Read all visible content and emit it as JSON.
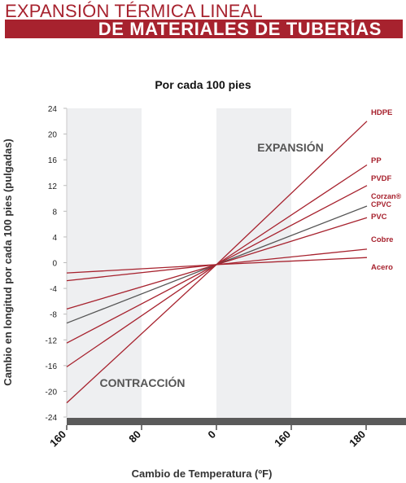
{
  "header": {
    "title_line1": "EXPANSIÓN TÉRMICA LINEAL",
    "title_line2": "DE MATERIALES DE TUBERÍAS",
    "brand_color": "#a7222e"
  },
  "chart_data": {
    "type": "line",
    "title": "Por cada 100 pies",
    "xlabel": "Cambio de Temperatura (ºF)",
    "ylabel": "Cambio en longitud por cada 100 pies (pulgadas)",
    "x_tick_labels": [
      "160",
      "80",
      "0",
      "160",
      "180"
    ],
    "x": [
      -160,
      0,
      180
    ],
    "ylim": [
      -24,
      24
    ],
    "y_ticks": [
      24,
      20,
      16,
      12,
      8,
      4,
      0,
      -4,
      -8,
      -12,
      -16,
      -20,
      -24
    ],
    "grid": false,
    "annotations": {
      "expansion": "EXPANSIÓN",
      "contraction": "CONTRACCIÓN"
    },
    "series": [
      {
        "name": "HDPE",
        "color": "#a7222e",
        "values": [
          -21.8,
          -0.3,
          22.0
        ]
      },
      {
        "name": "PP",
        "color": "#a7222e",
        "values": [
          -16.2,
          -0.3,
          15.2
        ]
      },
      {
        "name": "PVDF",
        "color": "#a7222e",
        "values": [
          -12.5,
          -0.3,
          12.0
        ]
      },
      {
        "name": "Corzan®\nCPVC",
        "color": "#555555",
        "values": [
          -9.4,
          -0.3,
          8.8
        ]
      },
      {
        "name": "PVC",
        "color": "#a7222e",
        "values": [
          -7.2,
          -0.3,
          7.0
        ]
      },
      {
        "name": "Cobre",
        "color": "#a7222e",
        "values": [
          -2.8,
          -0.3,
          2.1
        ]
      },
      {
        "name": "Acero",
        "color": "#a7222e",
        "values": [
          -1.6,
          -0.3,
          0.8
        ]
      }
    ]
  }
}
